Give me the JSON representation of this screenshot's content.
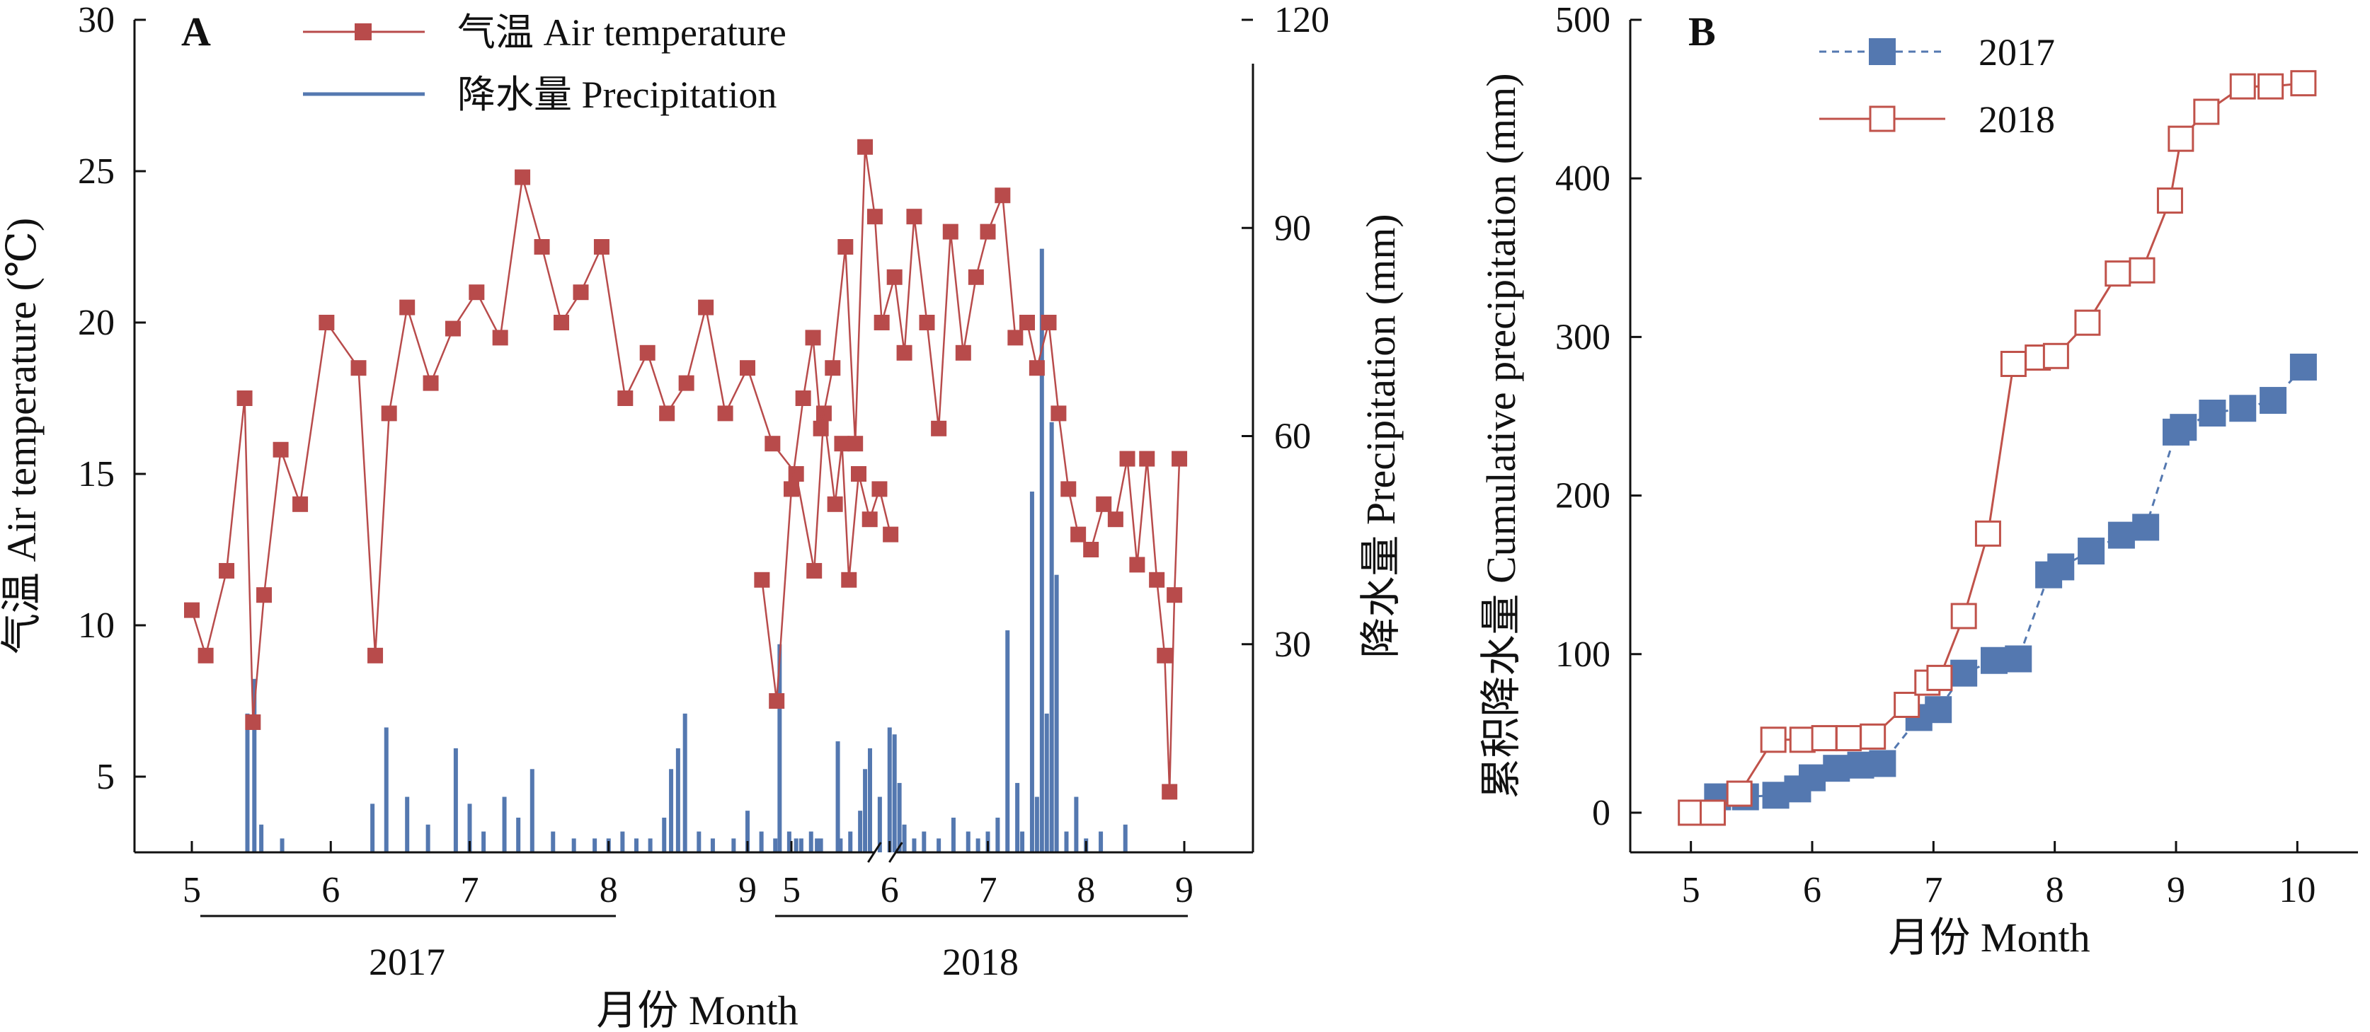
{
  "colors": {
    "temperature": "#b84b4b",
    "precipitation": "#5478b0",
    "series_2017": "#5478b0",
    "series_2018": "#c0524a",
    "axis": "#111111"
  },
  "chart_data": [
    {
      "panel_label": "A",
      "type": "line",
      "legend": [
        "气温 Air temperature",
        "降水量 Precipitation"
      ],
      "legend_position": "top-center",
      "ylabel_left": "气温 Air temperature (℃)",
      "ylabel_right": "降水量 Precipitation (mm)",
      "xlabel": "月份 Month",
      "year_labels": [
        "2017",
        "2018"
      ],
      "axis_break": true,
      "ylim_left": [
        2.5,
        30
      ],
      "ylim_right": [
        0,
        120
      ],
      "yticks_left": [
        5,
        10,
        15,
        20,
        25,
        30
      ],
      "yticks_right": [
        30,
        60,
        90,
        120
      ],
      "xticks": [
        {
          "year": "2017",
          "month": 5,
          "label": "5"
        },
        {
          "year": "2017",
          "month": 6,
          "label": "6"
        },
        {
          "year": "2017",
          "month": 7,
          "label": "7"
        },
        {
          "year": "2017",
          "month": 8,
          "label": "8"
        },
        {
          "year": "2017",
          "month": 9,
          "label": "9"
        },
        {
          "year": "2018",
          "month": 5,
          "label": "5"
        },
        {
          "year": "2018",
          "month": 6,
          "label": "6"
        },
        {
          "year": "2018",
          "month": 7,
          "label": "7"
        },
        {
          "year": "2018",
          "month": 8,
          "label": "8"
        },
        {
          "year": "2018",
          "month": 9,
          "label": "9"
        }
      ],
      "series": [
        {
          "name": "气温 Air temperature",
          "axis": "left",
          "segments": [
            {
              "year": "2017",
              "x": [
                5.0,
                5.1,
                5.25,
                5.38,
                5.44,
                5.52,
                5.64,
                5.78,
                5.97,
                6.2,
                6.32,
                6.42,
                6.55,
                6.72,
                6.88,
                7.05,
                7.22,
                7.38,
                7.52,
                7.66,
                7.8,
                7.95,
                8.12,
                8.28,
                8.42,
                8.56,
                8.7,
                8.84,
                9.0,
                9.18,
                9.35,
                9.48,
                9.55,
                9.63,
                9.68,
                9.73,
                9.8,
                9.88,
                9.95,
                10.03
              ],
              "y": [
                10.5,
                9.0,
                11.8,
                17.5,
                6.8,
                11.0,
                15.8,
                14.0,
                20.0,
                18.5,
                9.0,
                17.0,
                20.5,
                18.0,
                19.8,
                21.0,
                19.5,
                24.8,
                22.5,
                20.0,
                21.0,
                22.5,
                17.5,
                19.0,
                17.0,
                18.0,
                20.5,
                17.0,
                18.5,
                16.0,
                15.0,
                11.8,
                17.0,
                14.0,
                16.0,
                11.5,
                15.0,
                13.5,
                14.5,
                13.0
              ]
            },
            {
              "year": "2018",
              "x": [
                4.7,
                4.85,
                5.0,
                5.12,
                5.22,
                5.3,
                5.42,
                5.55,
                5.65,
                5.75,
                5.85,
                5.92,
                6.05,
                6.15,
                6.25,
                6.38,
                6.5,
                6.62,
                6.75,
                6.88,
                7.0,
                7.15,
                7.28,
                7.4,
                7.5,
                7.62,
                7.72,
                7.82,
                7.92,
                8.05,
                8.18,
                8.3,
                8.42,
                8.52,
                8.62,
                8.72,
                8.8,
                8.85,
                8.9,
                8.95
              ],
              "y": [
                11.5,
                7.5,
                14.5,
                17.5,
                19.5,
                16.5,
                18.5,
                22.5,
                16.0,
                25.8,
                23.5,
                20.0,
                21.5,
                19.0,
                23.5,
                20.0,
                16.5,
                23.0,
                19.0,
                21.5,
                23.0,
                24.2,
                19.5,
                20.0,
                18.5,
                20.0,
                17.0,
                14.5,
                13.0,
                12.5,
                14.0,
                13.5,
                15.5,
                12.0,
                15.5,
                11.5,
                9.0,
                4.5,
                11.0,
                15.5
              ]
            }
          ]
        },
        {
          "name": "降水量 Precipitation",
          "axis": "right",
          "segments": [
            {
              "year": "2017",
              "x": [
                5.4,
                5.45,
                5.5,
                5.65,
                6.3,
                6.4,
                6.55,
                6.7,
                6.9,
                7.0,
                7.1,
                7.25,
                7.35,
                7.45,
                7.6,
                7.75,
                7.9,
                8.0,
                8.1,
                8.2,
                8.3,
                8.4,
                8.45,
                8.5,
                8.55,
                8.65,
                8.75,
                8.9,
                9.0,
                9.1,
                9.2,
                9.3,
                9.35,
                9.5,
                9.65
              ],
              "y": [
                20,
                25,
                4,
                2,
                7,
                18,
                8,
                4,
                15,
                7,
                3,
                8,
                5,
                12,
                3,
                2,
                2,
                2,
                3,
                2,
                2,
                5,
                12,
                15,
                20,
                3,
                2,
                2,
                6,
                3,
                2,
                3,
                2,
                2,
                16
              ]
            },
            {
              "year": "2018",
              "x": [
                4.88,
                5.1,
                5.2,
                5.3,
                5.5,
                5.6,
                5.7,
                5.75,
                5.8,
                5.9,
                6.0,
                6.05,
                6.1,
                6.15,
                6.25,
                6.35,
                6.5,
                6.65,
                6.8,
                6.9,
                7.0,
                7.1,
                7.2,
                7.3,
                7.35,
                7.45,
                7.5,
                7.55,
                7.6,
                7.65,
                7.7,
                7.8,
                7.9,
                8.0,
                8.15,
                8.4
              ],
              "y": [
                30,
                2,
                3,
                2,
                2,
                3,
                6,
                12,
                15,
                8,
                18,
                17,
                10,
                4,
                2,
                3,
                2,
                5,
                3,
                2,
                3,
                5,
                32,
                10,
                3,
                52,
                8,
                87,
                20,
                62,
                40,
                3,
                8,
                2,
                3,
                4
              ]
            }
          ]
        }
      ]
    },
    {
      "panel_label": "B",
      "type": "line",
      "legend_position": "top-left",
      "xlabel": "月份 Month",
      "ylabel": "累积降水量 Cumulative precipitation (mm)",
      "xlim": [
        4.5,
        10.5
      ],
      "ylim": [
        -25,
        500
      ],
      "xticks": [
        5,
        6,
        7,
        8,
        9,
        10
      ],
      "yticks": [
        0,
        100,
        200,
        300,
        400,
        500
      ],
      "series": [
        {
          "name": "2017",
          "marker": "filled-square",
          "line": "dashed",
          "x": [
            5.22,
            5.45,
            5.7,
            5.88,
            6.0,
            6.2,
            6.4,
            6.58,
            6.88,
            7.04,
            7.25,
            7.5,
            7.7,
            7.95,
            8.05,
            8.3,
            8.55,
            8.75,
            9.0,
            9.06,
            9.3,
            9.55,
            9.8,
            10.05
          ],
          "y": [
            10,
            10,
            11,
            15,
            22,
            28,
            30,
            31,
            60,
            65,
            88,
            96,
            97,
            150,
            155,
            165,
            175,
            180,
            240,
            243,
            252,
            255,
            260,
            281
          ]
        },
        {
          "name": "2018",
          "marker": "open-square",
          "line": "solid",
          "x": [
            5.0,
            5.18,
            5.4,
            5.68,
            5.92,
            6.1,
            6.3,
            6.5,
            6.78,
            6.95,
            7.05,
            7.25,
            7.45,
            7.66,
            7.86,
            8.01,
            8.27,
            8.52,
            8.72,
            8.95,
            9.04,
            9.25,
            9.55,
            9.78,
            10.05
          ],
          "y": [
            0,
            0,
            12,
            46,
            46,
            47,
            47,
            48,
            68,
            82,
            85,
            124,
            176,
            283,
            287,
            288,
            309,
            340,
            342,
            386,
            425,
            442,
            458,
            458,
            460
          ]
        }
      ]
    }
  ]
}
